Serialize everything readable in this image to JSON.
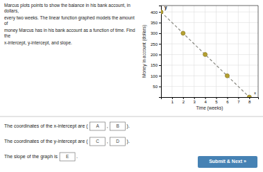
{
  "chart_data": {
    "type": "scatter",
    "problem_text": [
      "Marcus plots points to show the balance in his bank account, in dollars,",
      "every two weeks. The linear function graphed models the amount of",
      "money Marcus has in his bank account as a function of time. Find the",
      "x-intercept, y-intercept, and slope."
    ],
    "xlabel": "Time (weeks)",
    "ylabel": "Money in account (dollars)",
    "xlim": [
      0,
      8.8
    ],
    "ylim": [
      0,
      430
    ],
    "xticks": [
      1,
      2,
      3,
      4,
      5,
      6,
      7,
      8
    ],
    "yticks": [
      50,
      100,
      150,
      200,
      250,
      300,
      350,
      400
    ],
    "grid": true,
    "series": [
      {
        "type": "line",
        "line_style": "dashed",
        "color": "#888880",
        "x": [
          0,
          8
        ],
        "values": [
          400,
          0
        ]
      },
      {
        "type": "scatter",
        "marker": "circle",
        "color": "#b5a030",
        "x": [
          0,
          2,
          4,
          6,
          8
        ],
        "values": [
          400,
          300,
          200,
          100,
          0
        ]
      }
    ],
    "annotations": [
      "x",
      "y"
    ],
    "questions": [
      {
        "text": "The coordinates of the x-intercept are (",
        "inputs": [
          "A",
          "B"
        ],
        "separator": ",",
        "end": ")."
      },
      {
        "text": "The coordinates of the y-intercept are (",
        "inputs": [
          "C",
          "D"
        ],
        "separator": ",",
        "end": ")."
      },
      {
        "text": "The slope of the graph is",
        "inputs": [
          "E"
        ],
        "end": "."
      }
    ],
    "button": "Submit & Next »"
  }
}
